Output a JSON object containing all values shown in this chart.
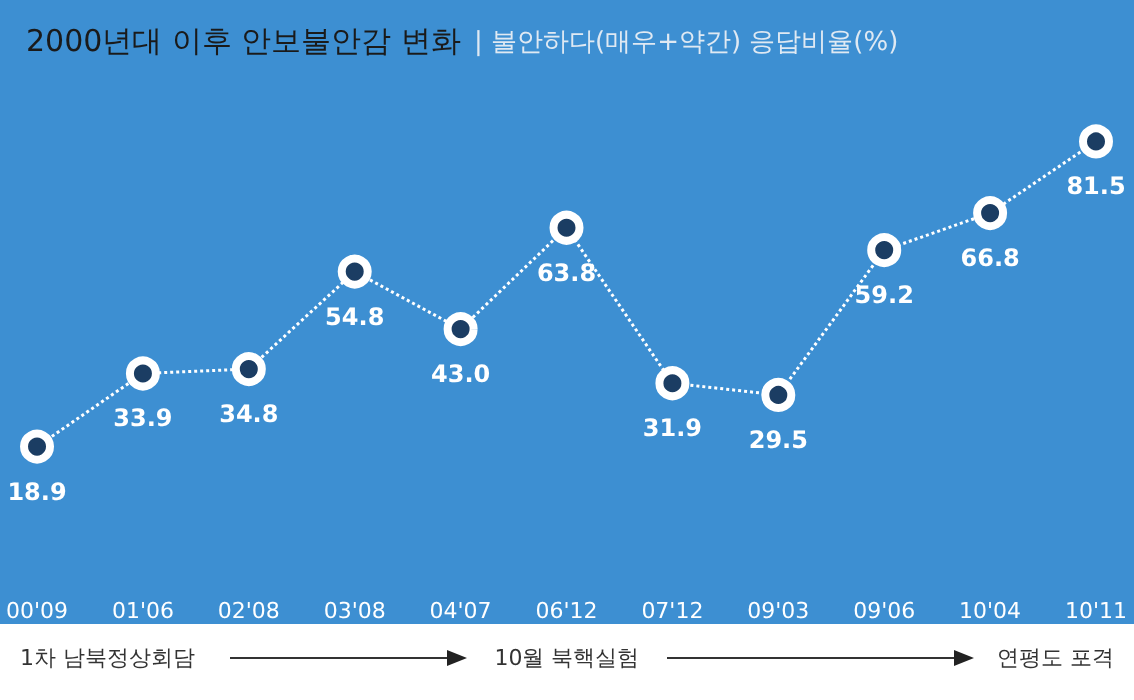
{
  "chart_data": {
    "type": "line",
    "title": "2000년대 이후 안보불안감 변화",
    "subtitle": "| 불안하다(매우+약간) 응답비율(%)",
    "categories": [
      "00'09",
      "01'06",
      "02'08",
      "03'08",
      "04'07",
      "06'12",
      "07'12",
      "09'03",
      "09'06",
      "10'04",
      "10'11"
    ],
    "series": [
      {
        "color": "#ffffff",
        "values": [
          18.9,
          33.9,
          34.8,
          54.8,
          43.0,
          63.8,
          31.9,
          29.5,
          59.2,
          66.8,
          81.5
        ],
        "value_labels": [
          "18.9",
          "33.9",
          "34.8",
          "54.8",
          "43.0",
          "63.8",
          "31.9",
          "29.5",
          "59.2",
          "66.8",
          "81.5"
        ]
      }
    ],
    "marker": "circle",
    "line_style": "dotted",
    "annotations": [
      "1차 남북정상회담",
      "10월 북핵실험",
      "연평도 포격"
    ]
  }
}
